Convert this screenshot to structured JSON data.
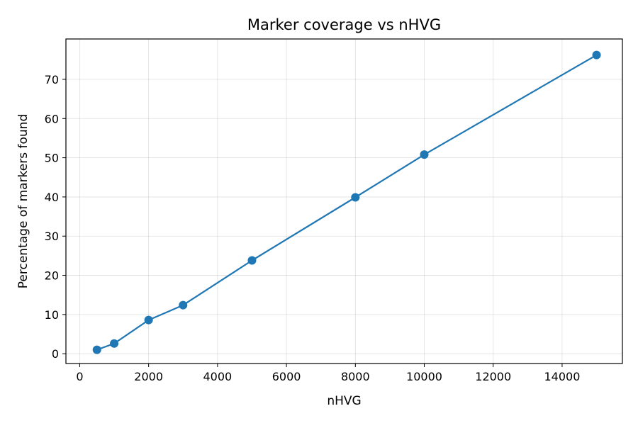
{
  "chart_data": {
    "type": "line",
    "title": "Marker coverage vs nHVG",
    "xlabel": "nHVG",
    "ylabel": "Percentage of markers found",
    "x": [
      500,
      1000,
      2000,
      3000,
      5000,
      8000,
      10000,
      15000
    ],
    "series": [
      {
        "values": [
          1.0,
          2.6,
          8.6,
          12.4,
          23.8,
          39.9,
          50.8,
          76.2
        ]
      }
    ],
    "xlim": [
      -400,
      15750
    ],
    "ylim": [
      -2.5,
      80.3
    ],
    "xticks": [
      0,
      2000,
      4000,
      6000,
      8000,
      10000,
      12000,
      14000
    ],
    "yticks": [
      0,
      10,
      20,
      30,
      40,
      50,
      60,
      70
    ],
    "xtick_labels": [
      "0",
      "2000",
      "4000",
      "6000",
      "8000",
      "10000",
      "12000",
      "14000"
    ],
    "ytick_labels": [
      "0",
      "10",
      "20",
      "30",
      "40",
      "50",
      "60",
      "70"
    ],
    "grid": true,
    "color": "#1f77b4",
    "marker": "circle"
  }
}
